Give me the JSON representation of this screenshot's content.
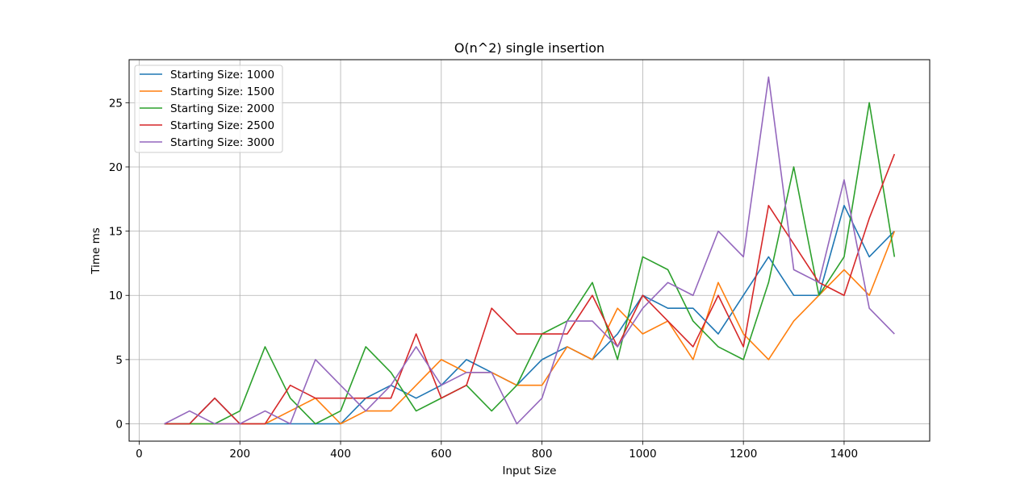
{
  "chart_data": {
    "type": "line",
    "title": "O(n^2) single insertion",
    "xlabel": "Input Size",
    "ylabel": "Time ms",
    "xlim": [
      -20,
      1570
    ],
    "ylim": [
      -1.35,
      28.35
    ],
    "xticks": [
      0,
      200,
      400,
      600,
      800,
      1000,
      1200,
      1400
    ],
    "yticks": [
      0,
      5,
      10,
      15,
      20,
      25
    ],
    "grid": true,
    "legend_position": "upper-left",
    "x": [
      50,
      100,
      150,
      200,
      250,
      300,
      350,
      400,
      450,
      500,
      550,
      600,
      650,
      700,
      750,
      800,
      850,
      900,
      950,
      1000,
      1050,
      1100,
      1150,
      1200,
      1250,
      1300,
      1350,
      1400,
      1450,
      1500
    ],
    "series": [
      {
        "name": "Starting Size: 1000",
        "color": "#1f77b4",
        "values": [
          0,
          0,
          2,
          0,
          0,
          0,
          0,
          0,
          2,
          3,
          2,
          3,
          5,
          4,
          3,
          5,
          6,
          5,
          7,
          10,
          9,
          9,
          7,
          10,
          13,
          10,
          10,
          17,
          13,
          15
        ]
      },
      {
        "name": "Starting Size: 1500",
        "color": "#ff7f0e",
        "values": [
          0,
          0,
          0,
          0,
          0,
          1,
          2,
          0,
          1,
          1,
          3,
          5,
          4,
          4,
          3,
          3,
          6,
          5,
          9,
          7,
          8,
          5,
          11,
          7,
          5,
          8,
          10,
          12,
          10,
          15
        ]
      },
      {
        "name": "Starting Size: 2000",
        "color": "#2ca02c",
        "values": [
          0,
          0,
          0,
          1,
          6,
          2,
          0,
          1,
          6,
          4,
          1,
          2,
          3,
          1,
          3,
          7,
          8,
          11,
          5,
          13,
          12,
          8,
          6,
          5,
          11,
          20,
          10,
          13,
          25,
          13
        ]
      },
      {
        "name": "Starting Size: 2500",
        "color": "#d62728",
        "values": [
          0,
          0,
          2,
          0,
          0,
          3,
          2,
          2,
          2,
          2,
          7,
          2,
          3,
          9,
          7,
          7,
          7,
          10,
          6,
          10,
          8,
          6,
          10,
          6,
          17,
          14,
          11,
          10,
          16,
          21
        ]
      },
      {
        "name": "Starting Size: 3000",
        "color": "#9467bd",
        "values": [
          0,
          1,
          0,
          0,
          1,
          0,
          5,
          3,
          1,
          3,
          6,
          3,
          4,
          4,
          0,
          2,
          8,
          8,
          6,
          9,
          11,
          10,
          15,
          13,
          27,
          12,
          11,
          19,
          9,
          7
        ]
      }
    ]
  }
}
